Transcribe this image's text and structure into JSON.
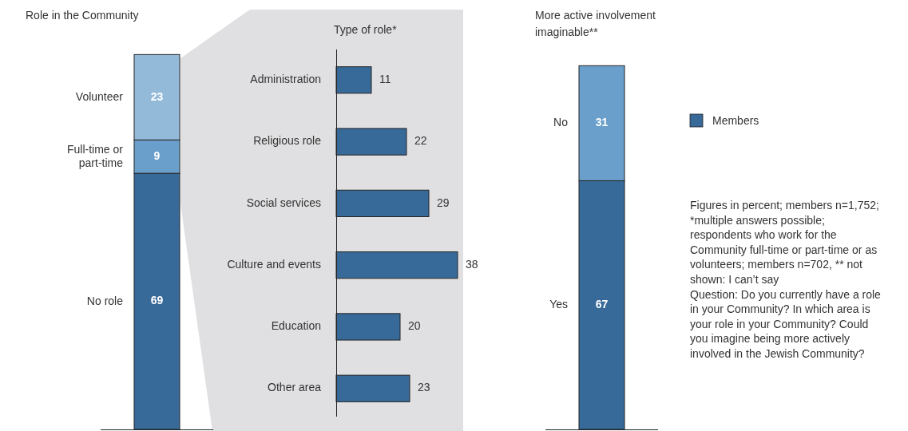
{
  "chart_data": [
    {
      "type": "bar",
      "stacked": true,
      "title": "Role in the Community",
      "categories": [
        null
      ],
      "data_labels": true,
      "series": [
        {
          "name": "No role",
          "color": "#386a99",
          "values": [
            69
          ]
        },
        {
          "name": "Full-time or part-time",
          "color": "#6a9fcb",
          "values": [
            9
          ]
        },
        {
          "name": "Volunteer",
          "color": "#94bad9",
          "values": [
            23
          ]
        }
      ]
    },
    {
      "type": "bar",
      "orientation": "horizontal",
      "title": "Type of role*",
      "categories": [
        "Administration",
        "Religious role",
        "Social services",
        "Culture and events",
        "Education",
        "Other area"
      ],
      "data_labels": true,
      "legend": "right",
      "series": [
        {
          "name": "Members",
          "color": "#386a99",
          "values": [
            11,
            22,
            29,
            38,
            20,
            23
          ]
        }
      ]
    },
    {
      "type": "bar",
      "stacked": true,
      "title": "More active involvement imaginable**",
      "categories": [
        null
      ],
      "data_labels": true,
      "series": [
        {
          "name": "Yes",
          "color": "#386a99",
          "values": [
            67
          ]
        },
        {
          "name": "No",
          "color": "#6a9fcb",
          "values": [
            31
          ]
        }
      ],
      "annotations": [
        "Figures in percent; members n=1,752; *multiple answers possible; respondents who work for the Community full-time or part-time or as volunteers; members n=702, ** not shown: I can’t say",
        "Question: Do you currently have a role in your Community? In which area is your role in your Community? Could you imagine being more actively involved in the Jewish Community?"
      ]
    }
  ]
}
